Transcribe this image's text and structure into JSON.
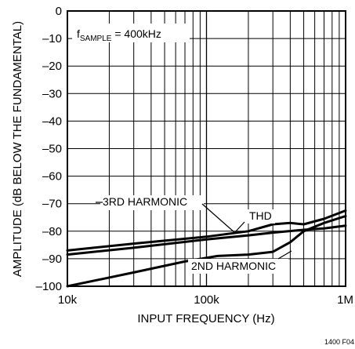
{
  "chart_data": {
    "type": "line",
    "x_scale": "log",
    "y_scale": "linear",
    "xlim": [
      10000,
      1000000
    ],
    "ylim": [
      -100,
      0
    ],
    "xlabel": "INPUT FREQUENCY (Hz)",
    "ylabel": "AMPLITUDE (dB BELOW THE FUNDAMENTAL)",
    "x_ticks": [
      10000,
      100000,
      1000000
    ],
    "x_tick_labels": [
      "10k",
      "100k",
      "1M"
    ],
    "y_ticks": [
      0,
      -10,
      -20,
      -30,
      -40,
      -50,
      -60,
      -70,
      -80,
      -90,
      -100
    ],
    "y_tick_labels": [
      "0",
      "–10",
      "–20",
      "–30",
      "–40",
      "–50",
      "–60",
      "–70",
      "–80",
      "–90",
      "–100"
    ],
    "grid": true,
    "condition_label": {
      "f": "f",
      "sub": "SAMPLE",
      "rest": " = 400kHz"
    },
    "figure_id": "1400 F04",
    "series": [
      {
        "name": "THD",
        "x": [
          10000,
          30000,
          100000,
          200000,
          300000,
          400000,
          500000,
          700000,
          1000000
        ],
        "y": [
          -87,
          -84.5,
          -82,
          -80,
          -77.5,
          -77,
          -77.5,
          -75.5,
          -72.5
        ]
      },
      {
        "name": "3RD HARMONIC",
        "x": [
          10000,
          30000,
          100000,
          200000,
          300000,
          500000,
          700000,
          1000000
        ],
        "y": [
          -88.5,
          -86,
          -83,
          -81.5,
          -80.5,
          -79.5,
          -79,
          -78
        ]
      },
      {
        "name": "2ND HARMONIC",
        "x": [
          10000,
          30000,
          70000,
          120000,
          200000,
          300000,
          400000,
          500000,
          700000,
          1000000
        ],
        "y": [
          -100,
          -95,
          -91,
          -89,
          -88.5,
          -87.5,
          -84,
          -80,
          -77,
          -74.5
        ]
      }
    ],
    "annotations": [
      {
        "text": "3RD HARMONIC",
        "series": "3RD HARMONIC"
      },
      {
        "text": "THD",
        "series": "THD"
      },
      {
        "text": "2ND HARMONIC",
        "series": "2ND HARMONIC"
      }
    ]
  }
}
